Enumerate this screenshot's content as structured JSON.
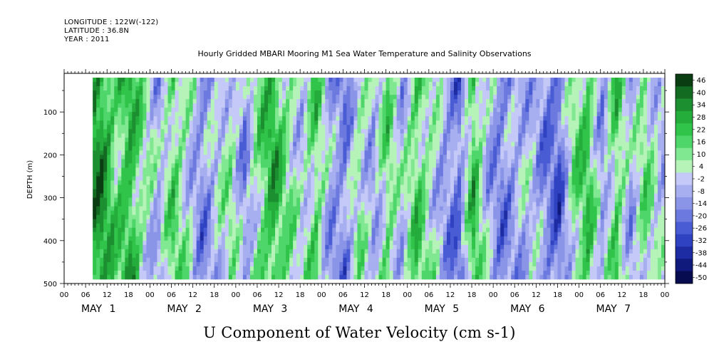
{
  "header": {
    "longitude": "LONGITUDE : 122W(-122)",
    "latitude": "LATITUDE : 36.8N",
    "year": "YEAR : 2011"
  },
  "plot_title": "Hourly Gridded MBARI Mooring M1 Sea Water Temperature and Salinity Observations",
  "chart_data": {
    "type": "heatmap",
    "title": "U Component of Water Velocity (cm s-1)",
    "ylabel": "DEPTH (m)",
    "ylim": [
      500,
      10
    ],
    "y_ticks": [
      100,
      200,
      300,
      400,
      500
    ],
    "x_hour_ticks": [
      "00",
      "06",
      "12",
      "18",
      "00",
      "06",
      "12",
      "18",
      "00",
      "06",
      "12",
      "18",
      "00",
      "06",
      "12",
      "18",
      "00",
      "06",
      "12",
      "18",
      "00",
      "06",
      "12",
      "18",
      "00",
      "06",
      "12",
      "18",
      "00"
    ],
    "x_day_labels": [
      "MAY 1",
      "MAY 2",
      "MAY 3",
      "MAY 4",
      "MAY 5",
      "MAY 6",
      "MAY 7"
    ],
    "data_extent": {
      "start_hour": 8,
      "end_hour": 168,
      "depth_min": 20,
      "depth_max": 485
    },
    "colorbar": {
      "labels": [
        "46",
        "40",
        "34",
        "28",
        "22",
        "16",
        "10",
        "4",
        "-2",
        "-8",
        "-14",
        "-20",
        "-26",
        "-32",
        "-38",
        "-44",
        "-50"
      ],
      "colors": [
        "#0b3d13",
        "#136b22",
        "#1c8f30",
        "#25ad3c",
        "#31c44a",
        "#4fd66a",
        "#80e890",
        "#b5f3b8",
        "#c4c9f8",
        "#a7aff0",
        "#8b95e8",
        "#6c79df",
        "#4a5cd4",
        "#2f42c2",
        "#1d2ca3",
        "#10197c",
        "#070b4f"
      ]
    },
    "column_bands": [
      {
        "hour": 10,
        "value": 30
      },
      {
        "hour": 14,
        "value": 12
      },
      {
        "hour": 18,
        "value": 24
      },
      {
        "hour": 22,
        "value": 4
      },
      {
        "hour": 26,
        "value": -8
      },
      {
        "hour": 30,
        "value": 14
      },
      {
        "hour": 34,
        "value": 2
      },
      {
        "hour": 38,
        "value": -14
      },
      {
        "hour": 42,
        "value": -4
      },
      {
        "hour": 46,
        "value": 6
      },
      {
        "hour": 50,
        "value": -12
      },
      {
        "hour": 54,
        "value": 10
      },
      {
        "hour": 58,
        "value": 24
      },
      {
        "hour": 62,
        "value": 8
      },
      {
        "hour": 66,
        "value": -2
      },
      {
        "hour": 70,
        "value": 14
      },
      {
        "hour": 74,
        "value": -10
      },
      {
        "hour": 78,
        "value": -16
      },
      {
        "hour": 82,
        "value": 6
      },
      {
        "hour": 86,
        "value": -8
      },
      {
        "hour": 90,
        "value": 12
      },
      {
        "hour": 94,
        "value": -6
      },
      {
        "hour": 98,
        "value": 16
      },
      {
        "hour": 102,
        "value": 4
      },
      {
        "hour": 106,
        "value": -10
      },
      {
        "hour": 110,
        "value": -20
      },
      {
        "hour": 114,
        "value": 20
      },
      {
        "hour": 118,
        "value": -6
      },
      {
        "hour": 122,
        "value": -16
      },
      {
        "hour": 126,
        "value": -8
      },
      {
        "hour": 130,
        "value": -4
      },
      {
        "hour": 134,
        "value": -14
      },
      {
        "hour": 138,
        "value": -22
      },
      {
        "hour": 142,
        "value": 8
      },
      {
        "hour": 146,
        "value": 18
      },
      {
        "hour": 150,
        "value": -10
      },
      {
        "hour": 154,
        "value": 16
      },
      {
        "hour": 158,
        "value": -8
      },
      {
        "hour": 162,
        "value": 10
      },
      {
        "hour": 166,
        "value": -4
      }
    ]
  }
}
